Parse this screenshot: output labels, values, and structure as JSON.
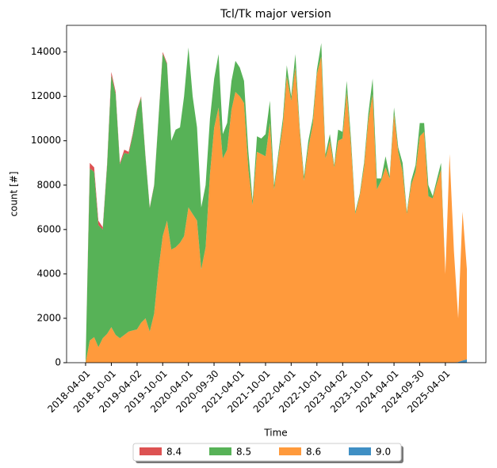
{
  "chart_data": {
    "type": "stacked_area",
    "title": "Tcl/Tk major version",
    "x_label": "Time",
    "y_label": "count [#]",
    "x": [
      "2018-04-01",
      "2018-05-01",
      "2018-06-01",
      "2018-07-01",
      "2018-08-01",
      "2018-09-01",
      "2018-10-01",
      "2018-11-01",
      "2018-12-01",
      "2019-01-01",
      "2019-02-01",
      "2019-03-01",
      "2019-04-01",
      "2019-05-01",
      "2019-06-01",
      "2019-07-01",
      "2019-08-01",
      "2019-09-01",
      "2019-10-01",
      "2019-11-01",
      "2019-12-01",
      "2020-01-01",
      "2020-02-01",
      "2020-03-01",
      "2020-04-01",
      "2020-05-01",
      "2020-06-01",
      "2020-07-01",
      "2020-08-01",
      "2020-09-01",
      "2020-10-01",
      "2020-11-01",
      "2020-12-01",
      "2021-01-01",
      "2021-02-01",
      "2021-03-01",
      "2021-04-01",
      "2021-05-01",
      "2021-06-01",
      "2021-07-01",
      "2021-08-01",
      "2021-09-01",
      "2021-10-01",
      "2021-11-01",
      "2021-12-01",
      "2022-01-01",
      "2022-02-01",
      "2022-03-01",
      "2022-04-01",
      "2022-05-01",
      "2022-06-01",
      "2022-07-01",
      "2022-08-01",
      "2022-09-01",
      "2022-10-01",
      "2022-11-01",
      "2022-12-01",
      "2023-01-01",
      "2023-02-01",
      "2023-03-01",
      "2023-04-01",
      "2023-05-01",
      "2023-06-01",
      "2023-07-01",
      "2023-08-01",
      "2023-09-01",
      "2023-10-01",
      "2023-11-01",
      "2023-12-01",
      "2024-01-01",
      "2024-02-01",
      "2024-03-01",
      "2024-04-01",
      "2024-05-01",
      "2024-06-01",
      "2024-07-01",
      "2024-08-01",
      "2024-09-01",
      "2024-10-01",
      "2024-11-01",
      "2024-12-01",
      "2025-01-01",
      "2025-02-01",
      "2025-03-01",
      "2025-04-01",
      "2025-05-01",
      "2025-06-01",
      "2025-07-01",
      "2025-08-01",
      "2025-09-01"
    ],
    "series": [
      {
        "name": "8.4",
        "color": "#dd5252",
        "values": [
          0,
          250,
          200,
          200,
          100,
          80,
          150,
          100,
          60,
          150,
          100,
          80,
          60,
          60,
          50,
          30,
          30,
          30,
          80,
          50,
          0,
          0,
          0,
          0,
          0,
          0,
          0,
          0,
          0,
          0,
          0,
          0,
          0,
          0,
          0,
          0,
          0,
          0,
          0,
          0,
          0,
          0,
          0,
          0,
          0,
          0,
          0,
          0,
          0,
          0,
          0,
          0,
          0,
          0,
          0,
          0,
          0,
          0,
          0,
          0,
          0,
          0,
          0,
          0,
          0,
          0,
          0,
          0,
          0,
          0,
          0,
          0,
          0,
          0,
          0,
          0,
          0,
          0,
          0,
          0,
          0,
          0,
          0,
          0,
          0,
          0,
          0,
          0,
          0,
          0
        ]
      },
      {
        "name": "8.5",
        "color": "#57b257",
        "values": [
          0,
          7750,
          7450,
          5500,
          4900,
          7600,
          11350,
          10850,
          7840,
          8200,
          8000,
          8770,
          9840,
          10140,
          7250,
          5570,
          5770,
          6770,
          8220,
          7050,
          4900,
          5300,
          5200,
          6300,
          7200,
          5300,
          4200,
          2800,
          2800,
          2500,
          2200,
          2400,
          1100,
          1200,
          1300,
          1400,
          1300,
          1000,
          800,
          200,
          700,
          700,
          1000,
          1000,
          200,
          200,
          300,
          500,
          200,
          600,
          200,
          200,
          300,
          300,
          200,
          600,
          200,
          300,
          100,
          500,
          300,
          500,
          300,
          100,
          100,
          200,
          300,
          700,
          500,
          100,
          500,
          100,
          300,
          200,
          400,
          100,
          200,
          300,
          600,
          400,
          500,
          100,
          200,
          300,
          0,
          0,
          0,
          0,
          0,
          0
        ]
      },
      {
        "name": "8.6",
        "color": "#ff9a3c",
        "values": [
          0,
          1000,
          1150,
          700,
          1100,
          1300,
          1600,
          1250,
          1100,
          1250,
          1400,
          1450,
          1500,
          1800,
          2000,
          1400,
          2200,
          4200,
          5700,
          6400,
          5100,
          5200,
          5400,
          5700,
          7000,
          6700,
          6400,
          4200,
          5200,
          8500,
          10600,
          11500,
          9200,
          9600,
          11400,
          12200,
          12000,
          11700,
          8700,
          7100,
          9500,
          9400,
          9300,
          10800,
          7800,
          9300,
          10700,
          12900,
          11800,
          13300,
          10400,
          8200,
          9700,
          10700,
          13000,
          13800,
          9200,
          10000,
          8800,
          10000,
          10100,
          12200,
          9700,
          6700,
          7500,
          8800,
          10900,
          12100,
          7800,
          8200,
          8800,
          8300,
          11200,
          9500,
          8600,
          6700,
          8000,
          8600,
          10200,
          10400,
          7500,
          7400,
          8100,
          8700,
          4000,
          9400,
          5000,
          1970,
          6700,
          4050
        ]
      },
      {
        "name": "9.0",
        "color": "#3f8fc4",
        "values": [
          0,
          0,
          0,
          0,
          0,
          0,
          0,
          0,
          0,
          0,
          0,
          0,
          0,
          0,
          0,
          0,
          0,
          0,
          0,
          0,
          0,
          0,
          0,
          0,
          0,
          0,
          0,
          0,
          0,
          0,
          0,
          0,
          0,
          0,
          0,
          0,
          0,
          0,
          0,
          0,
          0,
          0,
          0,
          0,
          0,
          0,
          0,
          0,
          0,
          0,
          0,
          0,
          0,
          0,
          0,
          0,
          0,
          0,
          0,
          0,
          0,
          0,
          0,
          0,
          0,
          0,
          0,
          0,
          0,
          0,
          0,
          0,
          0,
          0,
          0,
          0,
          0,
          0,
          0,
          0,
          0,
          0,
          0,
          0,
          0,
          0,
          0,
          30,
          100,
          150
        ]
      }
    ],
    "xlim": [
      "2017-11-17",
      "2026-01-14"
    ],
    "xticks": [
      "2018-04-01",
      "2018-10-01",
      "2019-04-02",
      "2019-10-01",
      "2020-04-01",
      "2020-09-30",
      "2021-04-01",
      "2021-10-01",
      "2022-04-01",
      "2022-10-01",
      "2023-04-02",
      "2023-10-01",
      "2024-04-01",
      "2024-09-30",
      "2025-04-01"
    ],
    "ylim": [
      0,
      15200
    ],
    "yticks": [
      0,
      2000,
      4000,
      6000,
      8000,
      10000,
      12000,
      14000
    ],
    "legend": "bottom"
  }
}
